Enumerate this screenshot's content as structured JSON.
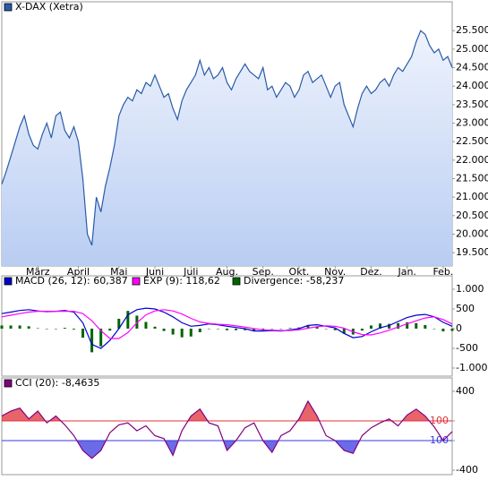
{
  "chart_data": [
    {
      "type": "area",
      "series": [
        {
          "name": "X-DAX (Xetra)",
          "color": "#2a5ba8",
          "values": [
            21350,
            21700,
            22100,
            22500,
            22900,
            23200,
            22700,
            22400,
            22300,
            22700,
            23000,
            22600,
            23200,
            23300,
            22800,
            22600,
            22900,
            22500,
            21500,
            20000,
            19700,
            21000,
            20600,
            21300,
            21800,
            22400,
            23200,
            23500,
            23700,
            23600,
            23900,
            23800,
            24100,
            24000,
            24300,
            24000,
            23700,
            23800,
            23400,
            23100,
            23600,
            23900,
            24100,
            24300,
            24700,
            24300,
            24500,
            24200,
            24300,
            24500,
            24100,
            23900,
            24200,
            24400,
            24600,
            24400,
            24300,
            24200,
            24500,
            23900,
            24000,
            23700,
            23900,
            24100,
            24000,
            23700,
            23900,
            24300,
            24400,
            24100,
            24200,
            24300,
            24000,
            23700,
            24000,
            24100,
            23500,
            23200,
            22900,
            23400,
            23800,
            24000,
            23800,
            23900,
            24100,
            24200,
            24000,
            24300,
            24500,
            24400,
            24600,
            24800,
            25200,
            25500,
            25400,
            25100,
            24900,
            25000,
            24700,
            24800,
            24500
          ]
        }
      ],
      "x": [
        0,
        1,
        2,
        3,
        4,
        5,
        6,
        7,
        8,
        9,
        10,
        11,
        12,
        13,
        14,
        15,
        16,
        17,
        18,
        19,
        20,
        21,
        22,
        23,
        24,
        25,
        26,
        27,
        28,
        29,
        30,
        31,
        32,
        33,
        34,
        35,
        36,
        37,
        38,
        39,
        40,
        41,
        42,
        43,
        44,
        45,
        46,
        47,
        48,
        49,
        50,
        51,
        52,
        53,
        54,
        55,
        56,
        57,
        58,
        59,
        60,
        61,
        62,
        63,
        64,
        65,
        66,
        67,
        68,
        69,
        70,
        71,
        72,
        73,
        74,
        75,
        76,
        77,
        78,
        79,
        80,
        81,
        82,
        83,
        84,
        85,
        86,
        87,
        88,
        89,
        90,
        91,
        92,
        93,
        94,
        95,
        96,
        97,
        98,
        99,
        100
      ],
      "xlim": [
        0,
        100
      ],
      "xticks": [
        {
          "value": 8,
          "label": "März"
        },
        {
          "value": 17,
          "label": "April"
        },
        {
          "value": 26,
          "label": "Mai"
        },
        {
          "value": 34,
          "label": "Juni"
        },
        {
          "value": 42,
          "label": "Juli"
        },
        {
          "value": 50,
          "label": "Aug."
        },
        {
          "value": 58,
          "label": "Sep."
        },
        {
          "value": 66,
          "label": "Okt."
        },
        {
          "value": 74,
          "label": "Nov."
        },
        {
          "value": 82,
          "label": "Dez."
        },
        {
          "value": 90,
          "label": "Jan."
        },
        {
          "value": 98,
          "label": "Feb."
        }
      ],
      "ylim": [
        19140,
        26280
      ],
      "yticks": [
        {
          "value": 19500,
          "label": "19.500"
        },
        {
          "value": 20000,
          "label": "20.000"
        },
        {
          "value": 20500,
          "label": "20.500"
        },
        {
          "value": 21000,
          "label": "21.000"
        },
        {
          "value": 21500,
          "label": "21.500"
        },
        {
          "value": 22000,
          "label": "22.000"
        },
        {
          "value": 22500,
          "label": "22.500"
        },
        {
          "value": 23000,
          "label": "23.000"
        },
        {
          "value": 23500,
          "label": "23.500"
        },
        {
          "value": 24000,
          "label": "24.000"
        },
        {
          "value": 24500,
          "label": "24.500"
        },
        {
          "value": 25000,
          "label": "25.000"
        },
        {
          "value": 25500,
          "label": "25.500"
        }
      ]
    },
    {
      "type": "line",
      "x": [
        0,
        2,
        4,
        6,
        8,
        10,
        12,
        14,
        16,
        18,
        20,
        22,
        24,
        26,
        28,
        30,
        32,
        34,
        36,
        38,
        40,
        42,
        44,
        46,
        48,
        50,
        52,
        54,
        56,
        58,
        60,
        62,
        64,
        66,
        68,
        70,
        72,
        74,
        76,
        78,
        80,
        82,
        84,
        86,
        88,
        90,
        92,
        94,
        96,
        98,
        100
      ],
      "xlim": [
        0,
        100
      ],
      "series": [
        {
          "name": "MACD (26, 12): 60,387",
          "color": "#0000cc",
          "style": "line",
          "values": [
            380,
            420,
            460,
            480,
            450,
            430,
            440,
            460,
            420,
            150,
            -400,
            -500,
            -300,
            0,
            350,
            480,
            520,
            500,
            420,
            300,
            150,
            60,
            80,
            120,
            100,
            60,
            30,
            0,
            -60,
            -60,
            -50,
            -60,
            -30,
            0,
            80,
            100,
            60,
            20,
            -120,
            -230,
            -200,
            -80,
            20,
            80,
            180,
            280,
            340,
            360,
            300,
            160,
            60.387
          ]
        },
        {
          "name": "EXP (9): 118,62",
          "color": "#ff00ff",
          "style": "line",
          "values": [
            300,
            340,
            380,
            420,
            440,
            440,
            440,
            440,
            440,
            380,
            200,
            -50,
            -250,
            -250,
            -100,
            150,
            350,
            450,
            480,
            450,
            370,
            260,
            170,
            130,
            110,
            100,
            70,
            40,
            0,
            -30,
            -40,
            -50,
            -45,
            -30,
            10,
            50,
            70,
            60,
            10,
            -80,
            -150,
            -160,
            -110,
            -40,
            40,
            120,
            200,
            270,
            300,
            230,
            118.62
          ]
        },
        {
          "name": "Divergence: -58,237",
          "color": "#006400",
          "style": "bar",
          "values": [
            80,
            80,
            80,
            60,
            10,
            -10,
            0,
            20,
            -20,
            -230,
            -600,
            -450,
            -50,
            250,
            450,
            330,
            170,
            50,
            -60,
            -150,
            -220,
            -200,
            -90,
            -10,
            -10,
            -40,
            -40,
            -40,
            -60,
            -30,
            -10,
            -10,
            15,
            30,
            70,
            50,
            -10,
            -40,
            -130,
            -150,
            -50,
            80,
            130,
            120,
            140,
            160,
            140,
            90,
            0,
            -70,
            -58.237
          ]
        }
      ],
      "ylim": [
        -1205,
        1340
      ],
      "yticks": [
        {
          "value": 1000,
          "label": "1.000"
        },
        500,
        0,
        -500,
        {
          "value": -1000,
          "label": "-1.000"
        }
      ]
    },
    {
      "type": "line",
      "x": [
        0,
        2,
        4,
        6,
        8,
        10,
        12,
        14,
        16,
        18,
        20,
        22,
        24,
        26,
        28,
        30,
        32,
        34,
        36,
        38,
        40,
        42,
        44,
        46,
        48,
        50,
        52,
        54,
        56,
        58,
        60,
        62,
        64,
        66,
        68,
        70,
        72,
        74,
        76,
        78,
        80,
        82,
        84,
        86,
        88,
        90,
        92,
        94,
        96,
        98,
        100
      ],
      "xlim": [
        0,
        100
      ],
      "series": [
        {
          "name": "CCI (20): -8,4635",
          "color": "#800080",
          "style": "line",
          "values": [
            150,
            200,
            230,
            120,
            200,
            80,
            150,
            60,
            -50,
            -200,
            -280,
            -200,
            -20,
            60,
            80,
            0,
            50,
            -50,
            -80,
            -250,
            0,
            150,
            220,
            80,
            50,
            -200,
            -100,
            30,
            80,
            -100,
            -220,
            -50,
            0,
            120,
            300,
            150,
            -50,
            -100,
            -200,
            -230,
            -50,
            30,
            80,
            120,
            50,
            160,
            220,
            150,
            40,
            -100,
            -8.4635
          ]
        }
      ],
      "upper": 100,
      "upper_color": "#e0303a",
      "lower": -100,
      "lower_color": "#3a3ae0",
      "ylim": [
        -445,
        536
      ],
      "yticks": [
        400,
        100,
        -100,
        -400
      ]
    }
  ]
}
